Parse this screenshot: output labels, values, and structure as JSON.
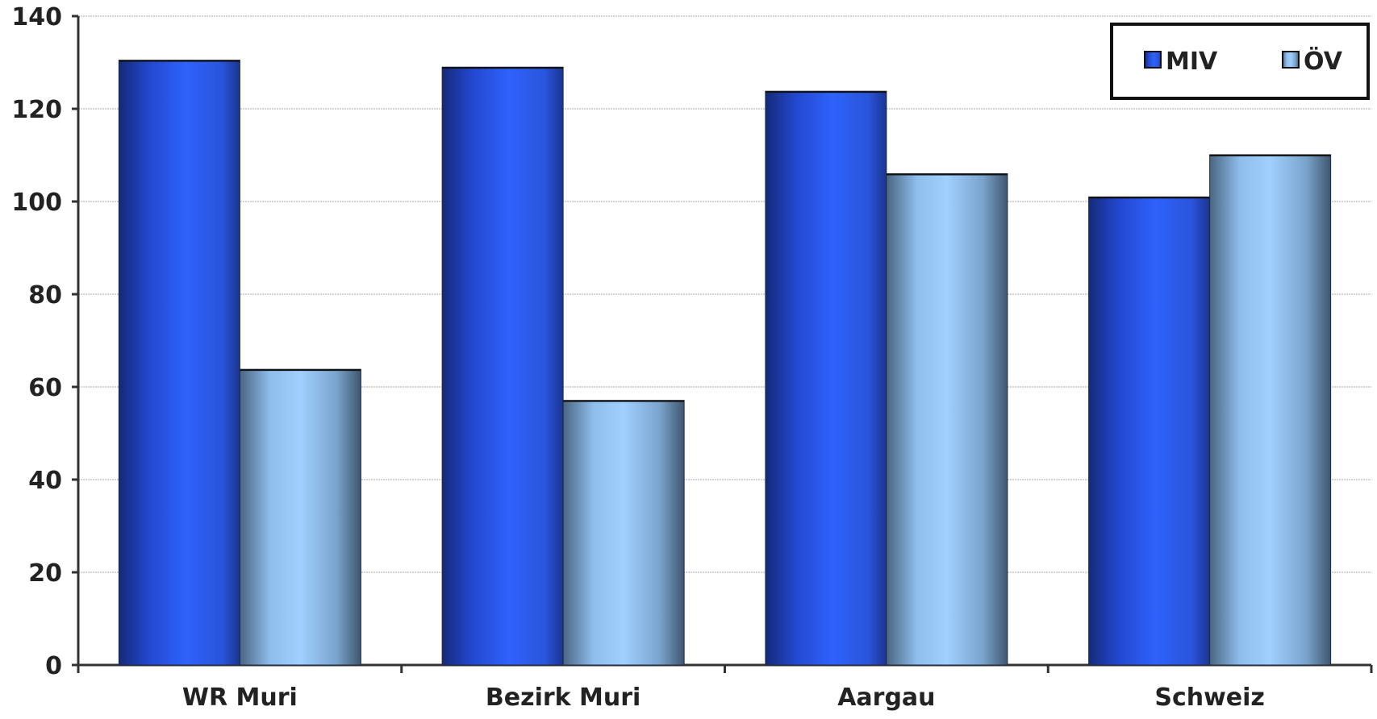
{
  "chart_data": {
    "type": "bar",
    "title": "",
    "xlabel": "",
    "ylabel": "",
    "categories": [
      "WR Muri",
      "Bezirk Muri",
      "Aargau",
      "Schweiz"
    ],
    "series": [
      {
        "name": "MIV",
        "values": [
          130.5,
          129.0,
          123.8,
          101.0
        ]
      },
      {
        "name": "ÖV",
        "values": [
          63.8,
          57.1,
          106.0,
          110.1
        ]
      }
    ],
    "ylim": [
      0,
      140
    ],
    "yticks": [
      0,
      20,
      40,
      60,
      80,
      100,
      120,
      140
    ],
    "grid": true,
    "legend_position": "top-right",
    "colors": {
      "MIV": "#2b5ef7",
      "MIV_dark": "#142a78",
      "ÖV": "#9cccff",
      "ÖV_dark": "#3f5670"
    }
  }
}
